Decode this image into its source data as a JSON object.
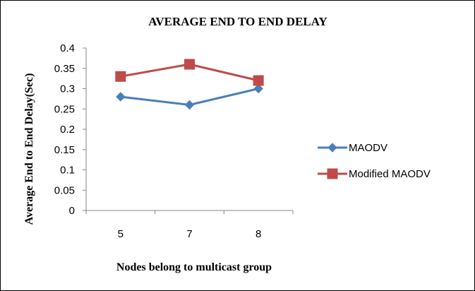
{
  "chart_data": {
    "type": "line",
    "title": "AVERAGE END TO END DELAY",
    "xlabel": "Nodes belong to multicast group",
    "ylabel": "Average End to End Delay(Sec)",
    "categories": [
      "5",
      "7",
      "8"
    ],
    "yticks": [
      "0",
      "0.05",
      "0.1",
      "0.15",
      "0.2",
      "0.25",
      "0.3",
      "0.35",
      "0.4"
    ],
    "ylim": [
      0,
      0.4
    ],
    "grid": false,
    "legend_position": "right",
    "series": [
      {
        "name": "MAODV",
        "values": [
          0.28,
          0.26,
          0.3
        ],
        "color": "#4a7ebb",
        "marker": "diamond"
      },
      {
        "name": "Modified MAODV",
        "values": [
          0.33,
          0.36,
          0.32
        ],
        "color": "#be4b48",
        "marker": "square"
      }
    ]
  }
}
